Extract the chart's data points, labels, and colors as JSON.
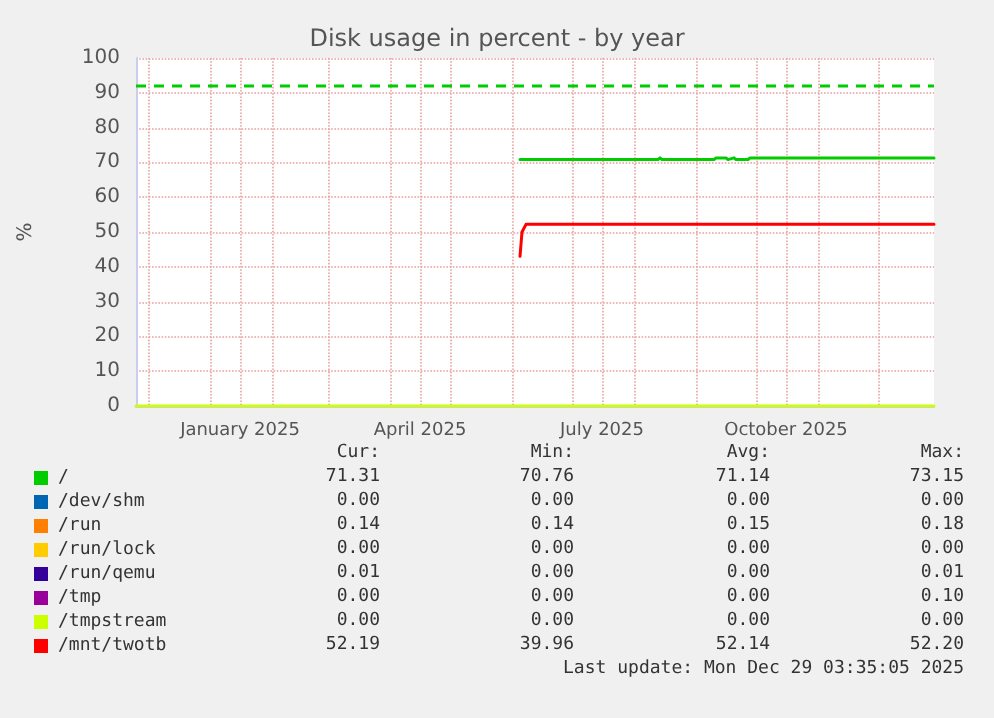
{
  "chart_data": {
    "type": "line",
    "title": "Disk usage in percent - by year",
    "ylabel": "%",
    "xlim": [
      "2024-11-25",
      "2025-12-29"
    ],
    "ylim": [
      0,
      100
    ],
    "yticks": [
      0,
      10,
      20,
      30,
      40,
      50,
      60,
      70,
      80,
      90,
      100
    ],
    "xticks": [
      {
        "value": "2024-12-01",
        "label": null
      },
      {
        "value": "2025-01-01",
        "label": null
      },
      {
        "value": "2025-01-16",
        "label": "January 2025"
      },
      {
        "value": "2025-02-01",
        "label": null
      },
      {
        "value": "2025-03-01",
        "label": null
      },
      {
        "value": "2025-04-01",
        "label": null
      },
      {
        "value": "2025-04-16",
        "label": "April 2025"
      },
      {
        "value": "2025-05-01",
        "label": null
      },
      {
        "value": "2025-06-01",
        "label": null
      },
      {
        "value": "2025-07-01",
        "label": null
      },
      {
        "value": "2025-07-16",
        "label": "July 2025"
      },
      {
        "value": "2025-08-01",
        "label": null
      },
      {
        "value": "2025-09-01",
        "label": null
      },
      {
        "value": "2025-10-01",
        "label": null
      },
      {
        "value": "2025-10-16",
        "label": "October 2025"
      },
      {
        "value": "2025-11-01",
        "label": null
      },
      {
        "value": "2025-12-01",
        "label": null
      }
    ],
    "grid": true,
    "legend": "bottom left",
    "marker": "none",
    "line_style": "solid",
    "ref_lines": [
      {
        "axis": "y",
        "value": 92,
        "label": null,
        "color": "#00cc00",
        "line_style": "dashed"
      }
    ],
    "series": [
      {
        "name": "/",
        "color": "#00cc00",
        "x": [
          "2025-06-05",
          "2025-08-13",
          "2025-08-14",
          "2025-08-15",
          "2025-09-10",
          "2025-09-11",
          "2025-09-16",
          "2025-09-17",
          "2025-09-20",
          "2025-09-21",
          "2025-09-27",
          "2025-09-28",
          "2025-12-29"
        ],
        "values": [
          70.8,
          70.8,
          71.3,
          70.8,
          70.8,
          71.3,
          71.3,
          70.8,
          71.3,
          70.8,
          70.8,
          71.3,
          71.3
        ]
      },
      {
        "name": "/dev/shm",
        "color": "#0066b3"
      },
      {
        "name": "/run",
        "color": "#ff8000"
      },
      {
        "name": "/run/lock",
        "color": "#ffcc00"
      },
      {
        "name": "/run/qemu",
        "color": "#330099"
      },
      {
        "name": "/tmp",
        "color": "#990099"
      },
      {
        "name": "/tmpstream",
        "color": "#ccff00",
        "x": [
          "2024-11-25",
          "2025-12-29"
        ],
        "values": [
          0,
          0
        ]
      },
      {
        "name": "/mnt/twotb",
        "color": "#ff0000",
        "x": [
          "2025-06-05",
          "2025-06-06",
          "2025-06-08",
          "2025-12-29"
        ],
        "values": [
          43,
          50,
          52.2,
          52.2
        ]
      }
    ],
    "annotations": [
      "Cur:",
      "Min:",
      "Avg:",
      "Max:",
      "71.31",
      "70.76",
      "71.14",
      "73.15",
      "0.00",
      "0.00",
      "0.00",
      "0.00",
      "0.14",
      "0.14",
      "0.15",
      "0.18",
      "0.00",
      "0.00",
      "0.00",
      "0.00",
      "0.01",
      "0.00",
      "0.00",
      "0.01",
      "0.00",
      "0.00",
      "0.00",
      "0.10",
      "0.00",
      "0.00",
      "0.00",
      "0.00",
      "52.19",
      "39.96",
      "52.14",
      "52.20",
      "Last update: Mon Dec 29 03:35:05 2025"
    ]
  }
}
